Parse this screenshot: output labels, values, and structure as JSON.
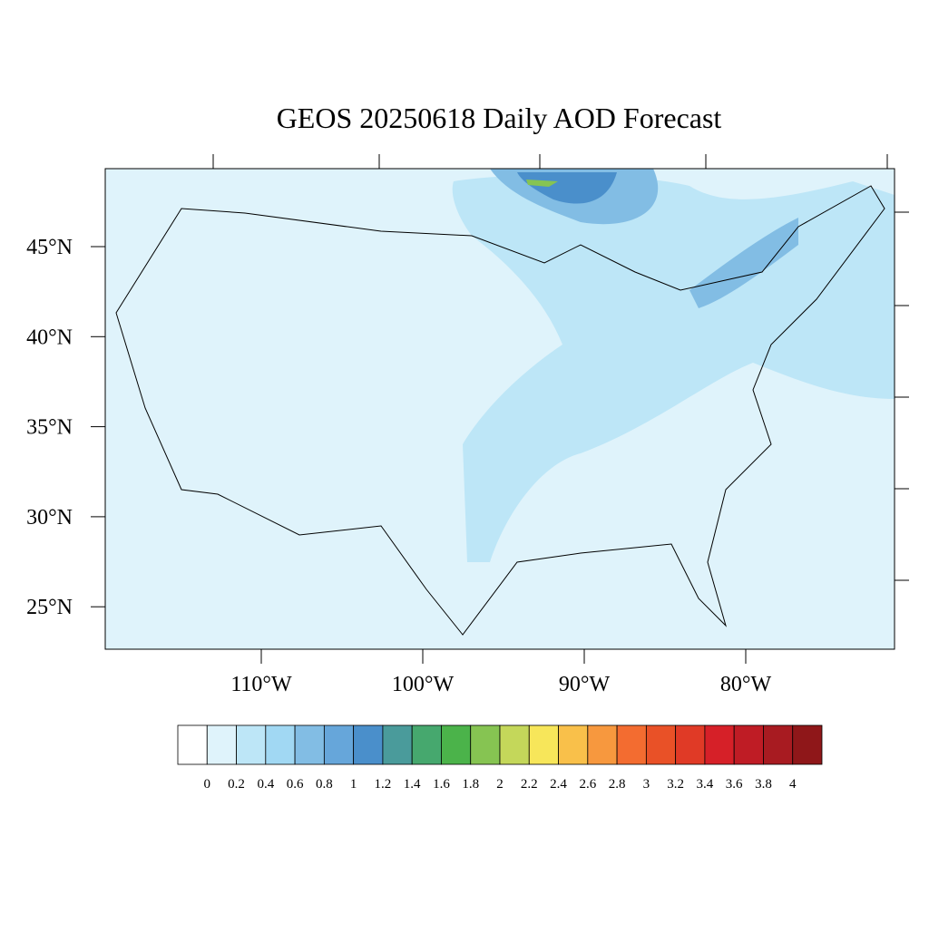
{
  "title": "GEOS 20250618 Daily AOD Forecast",
  "map": {
    "lat_ticks": [
      {
        "value": 45,
        "label": "45°N"
      },
      {
        "value": 40,
        "label": "40°N"
      },
      {
        "value": 35,
        "label": "35°N"
      },
      {
        "value": 30,
        "label": "30°N"
      },
      {
        "value": 25,
        "label": "25°N"
      }
    ],
    "lon_ticks": [
      {
        "value": -110,
        "label": "110°W"
      },
      {
        "value": -100,
        "label": "100°W"
      },
      {
        "value": -90,
        "label": "90°W"
      },
      {
        "value": -80,
        "label": "80°W"
      }
    ]
  },
  "colorbar": {
    "levels": [
      0,
      0.2,
      0.4,
      0.6,
      0.8,
      1,
      1.2,
      1.4,
      1.6,
      1.8,
      2,
      2.2,
      2.4,
      2.6,
      2.8,
      3,
      3.2,
      3.4,
      3.6,
      3.8,
      4
    ],
    "colors": [
      "#ffffff",
      "#dff3fb",
      "#bde6f7",
      "#a1d8f3",
      "#82bde4",
      "#66a6da",
      "#4a8fcb",
      "#4a9b9b",
      "#46a86e",
      "#4bb34a",
      "#86c452",
      "#c4d75a",
      "#f7e65a",
      "#f9c04a",
      "#f7983e",
      "#f36c30",
      "#e95127",
      "#e03a26",
      "#d62028",
      "#bf1c25",
      "#a81b21",
      "#8f1719"
    ]
  }
}
